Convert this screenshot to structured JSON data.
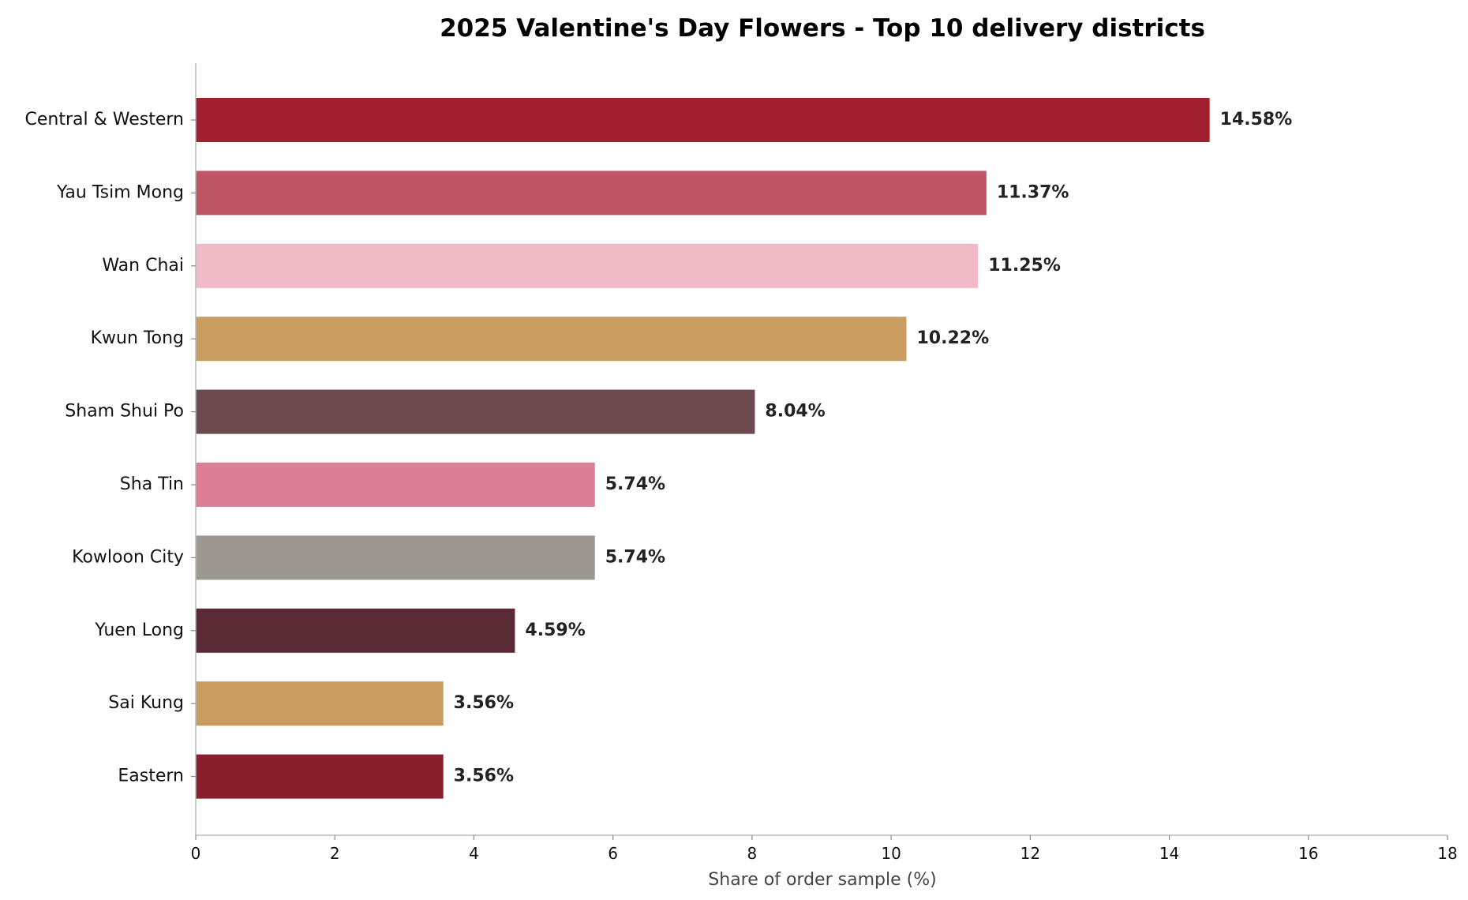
{
  "chart_data": {
    "type": "bar",
    "orientation": "horizontal",
    "title": "2025 Valentine's Day Flowers - Top 10 delivery districts",
    "xlabel": "Share of order sample (%)",
    "ylabel": "",
    "xlim": [
      0,
      18
    ],
    "xticks": [
      0,
      2,
      4,
      6,
      8,
      10,
      12,
      14,
      16,
      18
    ],
    "grid": false,
    "categories": [
      "Central & Western",
      "Yau Tsim Mong",
      "Wan Chai",
      "Kwun Tong",
      "Sham Shui Po",
      "Sha Tin",
      "Kowloon City",
      "Yuen Long",
      "Sai Kung",
      "Eastern"
    ],
    "values": [
      14.58,
      11.37,
      11.25,
      10.22,
      8.04,
      5.74,
      5.74,
      4.59,
      3.56,
      3.56
    ],
    "value_labels": [
      "14.58%",
      "11.37%",
      "11.25%",
      "10.22%",
      "8.04%",
      "5.74%",
      "5.74%",
      "4.59%",
      "3.56%",
      "3.56%"
    ],
    "colors": [
      "#A11F2F",
      "#BF5666",
      "#F0B9C6",
      "#C99D5F",
      "#6C4A50",
      "#DE7E96",
      "#9D9892",
      "#5A2B35",
      "#C99D5F",
      "#891E2C"
    ]
  }
}
